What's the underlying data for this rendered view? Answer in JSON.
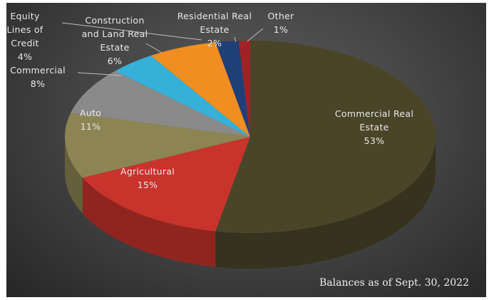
{
  "chart_data": {
    "type": "pie",
    "style": "3d",
    "title": "",
    "footnote": "Balances as of Sept. 30, 2022",
    "slices": [
      {
        "name": "Commercial Real Estate",
        "value": 53,
        "label_lines": [
          "Commercial Real",
          "Estate",
          "53%"
        ],
        "color": "#4a4528"
      },
      {
        "name": "Agricultural",
        "value": 15,
        "label_lines": [
          "Agricultural",
          "15%"
        ],
        "color": "#c8332c"
      },
      {
        "name": "Auto",
        "value": 11,
        "label_lines": [
          "Auto",
          "11%"
        ],
        "color": "#8c8452"
      },
      {
        "name": "Commercial",
        "value": 8,
        "label_lines": [
          "Commercial",
          "8%"
        ],
        "color": "#8a8a8a"
      },
      {
        "name": "Equity Lines of Credit",
        "value": 4,
        "label_lines": [
          "Equity",
          "Lines of",
          "Credit",
          "4%"
        ],
        "color": "#36b0d8"
      },
      {
        "name": "Construction and Land Real Estate",
        "value": 6,
        "label_lines": [
          "Construction",
          "and Land Real",
          "Estate",
          "6%"
        ],
        "color": "#f08e22"
      },
      {
        "name": "Residential Real Estate",
        "value": 2,
        "label_lines": [
          "Residential Real",
          "Estate",
          "2%"
        ],
        "color": "#1f3f78"
      },
      {
        "name": "Other",
        "value": 1,
        "label_lines": [
          "Other",
          "1%"
        ],
        "color": "#9c2424"
      }
    ],
    "legend": "none",
    "data_labels": "outside-with-leaders"
  }
}
